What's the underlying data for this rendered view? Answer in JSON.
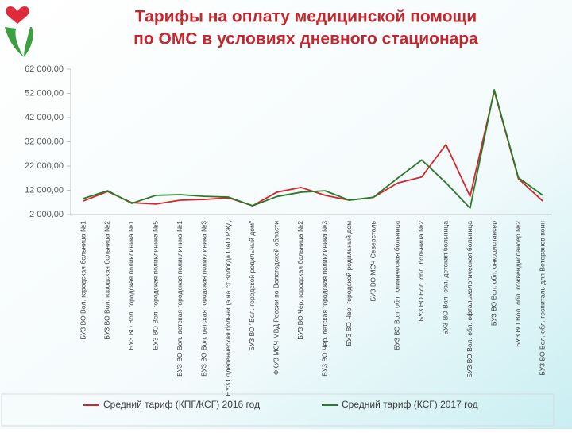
{
  "chart_data": {
    "type": "line",
    "title": [
      "Тарифы на оплату медицинской помощи",
      "по ОМС в условиях дневного стационара"
    ],
    "categories": [
      "БУЗ ВО Вол. городская больница №1",
      "БУЗ ВО Вол. городская больница №2",
      "БУЗ ВО Вол. городская поликлиника №1",
      "БУЗ ВО Вол. городская поликлиника №5",
      "БУЗ ВО Вол. детская городская поликлиника №1",
      "БУЗ ВО Вол. детская городская поликлиника №3",
      "НУЗ Отделенческая больница на ст.Вологда ОАО РЖД",
      "БУЗ ВО \"Вол. городской родильный дом\"",
      "ФКУЗ МСЧ МВД России по Вологодской области",
      "БУЗ ВО Чер. городская больница №2",
      "БУЗ ВО Чер. детская городская поликлиника №3",
      "БУЗ ВО Чер. городской родильный дом",
      "БУЗ ВО МСЧ Северсталь",
      "БУЗ ВО Вол. обл. клиническая больница",
      "БУЗ ВО Вол. обл. больница №2",
      "БУЗ ВО Вол. обл. детская больница",
      "БУЗ ВО Вол. обл. офтальмологическая больница",
      "БУЗ ВО Вол. обл. онкодиспансер",
      "БУЗ ВО Вол. обл. кожвендиспансер №2",
      "БУЗ ВО Вол. обл. госпиталь для Ветеранов воин"
    ],
    "series": [
      {
        "name": "Средний тариф (КПГ/КСГ) 2016 год",
        "color": "#d7262b",
        "values": [
          7600,
          11500,
          6900,
          6300,
          7900,
          8200,
          8900,
          5600,
          11200,
          13200,
          9900,
          7900,
          9100,
          15000,
          17500,
          30900,
          9500,
          53000,
          16800,
          7600
        ]
      },
      {
        "name": "Средний тариф (КСГ) 2017 год",
        "color": "#2a7a2a",
        "values": [
          8600,
          11800,
          6600,
          9900,
          10200,
          9500,
          9200,
          5600,
          9400,
          11200,
          11800,
          7900,
          9100,
          17000,
          24500,
          15100,
          4600,
          53500,
          17200,
          10000
        ]
      }
    ],
    "ylim": [
      2000,
      62000
    ],
    "yticks": [
      {
        "value": 2000,
        "label": "2 000,00"
      },
      {
        "value": 12000,
        "label": "12 000,00"
      },
      {
        "value": 22000,
        "label": "22 000,00"
      },
      {
        "value": 32000,
        "label": "32 000,00"
      },
      {
        "value": 42000,
        "label": "42 000,00"
      },
      {
        "value": 52000,
        "label": "52 000,00"
      },
      {
        "value": 62000,
        "label": "62 000,00"
      }
    ],
    "grid": false,
    "legend": "bottom"
  }
}
